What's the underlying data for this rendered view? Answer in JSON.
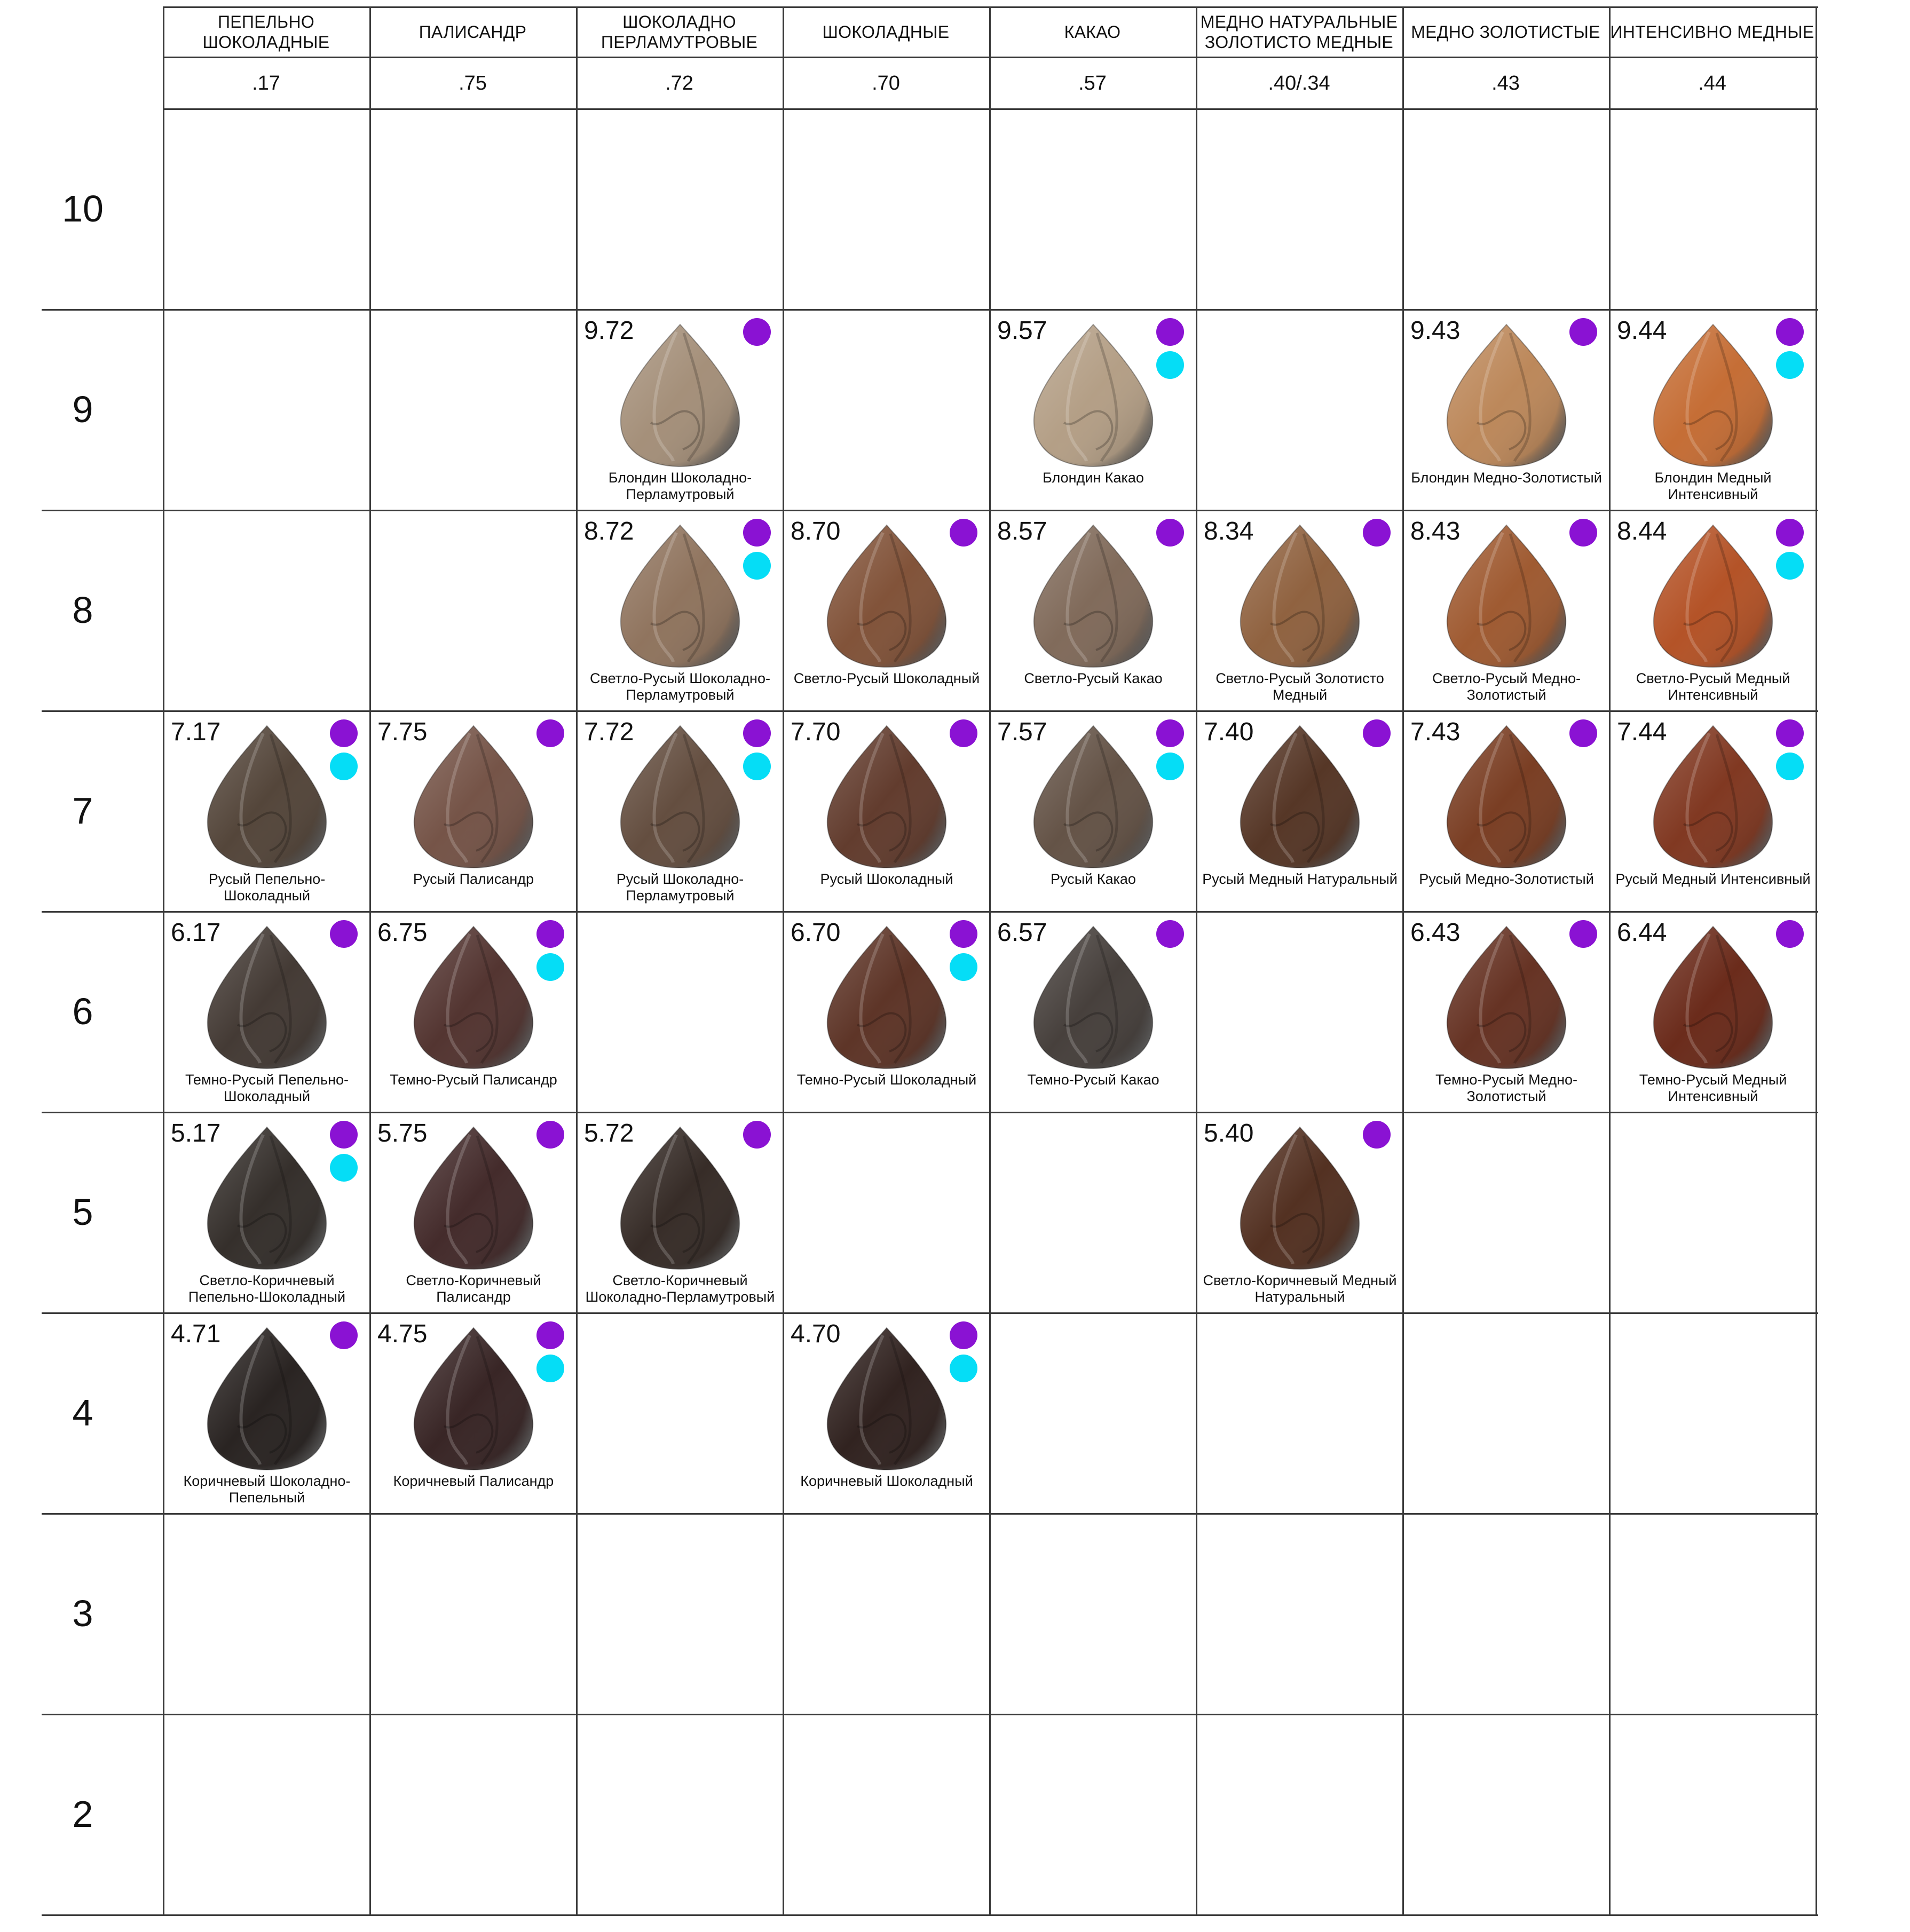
{
  "columns": [
    {
      "title": "ПЕПЕЛЬНО ШОКОЛАДНЫЕ",
      "code": ".17"
    },
    {
      "title": "ПАЛИСАНДР",
      "code": ".75"
    },
    {
      "title": "ШОКОЛАДНО ПЕРЛАМУТРОВЫЕ",
      "code": ".72"
    },
    {
      "title": "ШОКОЛАДНЫЕ",
      "code": ".70"
    },
    {
      "title": "КАКАО",
      "code": ".57"
    },
    {
      "title": "МЕДНО НАТУРАЛЬНЫЕ ЗОЛОТИСТО МЕДНЫЕ",
      "code": ".40/.34"
    },
    {
      "title": "МЕДНО ЗОЛОТИСТЫЕ",
      "code": ".43"
    },
    {
      "title": "ИНТЕНСИВНО МЕДНЫЕ",
      "code": ".44"
    }
  ],
  "rows": [
    "10",
    "9",
    "8",
    "7",
    "6",
    "5",
    "4",
    "3",
    "2"
  ],
  "legend_colors": {
    "purple": "#8A12D3",
    "cyan": "#05DDF6"
  },
  "cells": [
    {
      "row": "9",
      "col": 2,
      "code": "9.72",
      "name": "Блондин Шоколадно-Перламутровый",
      "color": "#a08a73",
      "purple": true,
      "cyan": false
    },
    {
      "row": "9",
      "col": 4,
      "code": "9.57",
      "name": "Блондин Какао",
      "color": "#b09a80",
      "purple": true,
      "cyan": true
    },
    {
      "row": "9",
      "col": 6,
      "code": "9.43",
      "name": "Блондин Медно-Золотистый",
      "color": "#b98252",
      "purple": true,
      "cyan": false
    },
    {
      "row": "9",
      "col": 7,
      "code": "9.44",
      "name": "Блондин Медный Интенсивный",
      "color": "#c2662b",
      "purple": true,
      "cyan": true
    },
    {
      "row": "8",
      "col": 2,
      "code": "8.72",
      "name": "Светло-Русый Шоколадно-Перламутровый",
      "color": "#8a6d56",
      "purple": true,
      "cyan": true
    },
    {
      "row": "8",
      "col": 3,
      "code": "8.70",
      "name": "Светло-Русый Шоколадный",
      "color": "#7b4a2f",
      "purple": true,
      "cyan": false
    },
    {
      "row": "8",
      "col": 4,
      "code": "8.57",
      "name": "Светло-Русый Какао",
      "color": "#7a6352",
      "purple": true,
      "cyan": false
    },
    {
      "row": "8",
      "col": 5,
      "code": "8.34",
      "name": "Светло-Русый Золотисто Медный",
      "color": "#8a5a36",
      "purple": true,
      "cyan": false
    },
    {
      "row": "8",
      "col": 6,
      "code": "8.43",
      "name": "Светло-Русый Медно-Золотистый",
      "color": "#9a5227",
      "purple": true,
      "cyan": false
    },
    {
      "row": "8",
      "col": 7,
      "code": "8.44",
      "name": "Светло-Русый Медный Интенсивный",
      "color": "#b04a1c",
      "purple": true,
      "cyan": true
    },
    {
      "row": "7",
      "col": 0,
      "code": "7.17",
      "name": "Русый Пепельно-Шоколадный",
      "color": "#4b3c30",
      "purple": true,
      "cyan": true
    },
    {
      "row": "7",
      "col": 1,
      "code": "7.75",
      "name": "Русый Палисандр",
      "color": "#6e4b3e",
      "purple": true,
      "cyan": false
    },
    {
      "row": "7",
      "col": 2,
      "code": "7.72",
      "name": "Русый Шоколадно-Перламутровый",
      "color": "#5c4536",
      "purple": true,
      "cyan": true
    },
    {
      "row": "7",
      "col": 3,
      "code": "7.70",
      "name": "Русый Шоколадный",
      "color": "#5a3223",
      "purple": true,
      "cyan": false
    },
    {
      "row": "7",
      "col": 4,
      "code": "7.57",
      "name": "Русый Какао",
      "color": "#5c4a3d",
      "purple": true,
      "cyan": true
    },
    {
      "row": "7",
      "col": 5,
      "code": "7.40",
      "name": "Русый Медный Натуральный",
      "color": "#4d2c1b",
      "purple": true,
      "cyan": false
    },
    {
      "row": "7",
      "col": 6,
      "code": "7.43",
      "name": "Русый Медно-Золотистый",
      "color": "#733418",
      "purple": true,
      "cyan": false
    },
    {
      "row": "7",
      "col": 7,
      "code": "7.44",
      "name": "Русый Медный Интенсивный",
      "color": "#7a2e16",
      "purple": true,
      "cyan": true
    },
    {
      "row": "6",
      "col": 0,
      "code": "6.17",
      "name": "Темно-Русый Пепельно-Шоколадный",
      "color": "#3a302a",
      "purple": true,
      "cyan": false
    },
    {
      "row": "6",
      "col": 1,
      "code": "6.75",
      "name": "Темно-Русый Палисандр",
      "color": "#4a2a26",
      "purple": true,
      "cyan": true
    },
    {
      "row": "6",
      "col": 3,
      "code": "6.70",
      "name": "Темно-Русый Шоколадный",
      "color": "#552a1c",
      "purple": true,
      "cyan": true
    },
    {
      "row": "6",
      "col": 4,
      "code": "6.57",
      "name": "Темно-Русый Какао",
      "color": "#3d3632",
      "purple": true,
      "cyan": false
    },
    {
      "row": "6",
      "col": 6,
      "code": "6.43",
      "name": "Темно-Русый Медно-Золотистый",
      "color": "#5e2818",
      "purple": true,
      "cyan": false
    },
    {
      "row": "6",
      "col": 7,
      "code": "6.44",
      "name": "Темно-Русый Медный Интенсивный",
      "color": "#63200f",
      "purple": true,
      "cyan": false
    },
    {
      "row": "5",
      "col": 0,
      "code": "5.17",
      "name": "Светло-Коричневый Пепельно-Шоколадный",
      "color": "#2a2420",
      "purple": true,
      "cyan": true
    },
    {
      "row": "5",
      "col": 1,
      "code": "5.75",
      "name": "Светло-Коричневый Палисандр",
      "color": "#3a2020",
      "purple": true,
      "cyan": false
    },
    {
      "row": "5",
      "col": 2,
      "code": "5.72",
      "name": "Светло-Коричневый Шоколадно-Перламутровый",
      "color": "#2c211c",
      "purple": true,
      "cyan": false
    },
    {
      "row": "5",
      "col": 5,
      "code": "5.40",
      "name": "Светло-Коричневый Медный Натуральный",
      "color": "#4a2616",
      "purple": true,
      "cyan": false
    },
    {
      "row": "4",
      "col": 0,
      "code": "4.71",
      "name": "Коричневый Шоколадно-Пепельный",
      "color": "#1e1816",
      "purple": true,
      "cyan": false
    },
    {
      "row": "4",
      "col": 1,
      "code": "4.75",
      "name": "Коричневый Палисандр",
      "color": "#2e1a1a",
      "purple": true,
      "cyan": true
    },
    {
      "row": "4",
      "col": 3,
      "code": "4.70",
      "name": "Коричневый Шоколадный",
      "color": "#261714",
      "purple": true,
      "cyan": true
    }
  ]
}
